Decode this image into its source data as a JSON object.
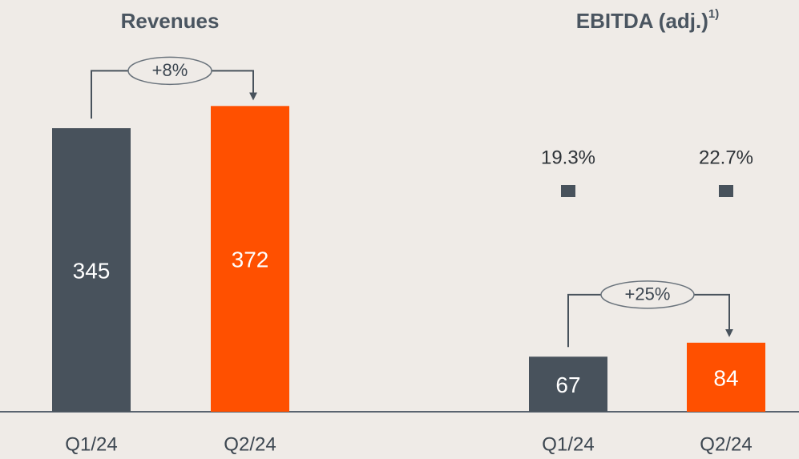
{
  "chart_data": [
    {
      "type": "bar",
      "title": "Revenues",
      "categories": [
        "Q1/24",
        "Q2/24"
      ],
      "values": [
        345,
        372
      ],
      "colors": [
        "#48525c",
        "#ff5000"
      ],
      "annotation": "+8%"
    },
    {
      "type": "bar",
      "title": "EBITDA (adj.)",
      "title_footnote": "1)",
      "categories": [
        "Q1/24",
        "Q2/24"
      ],
      "values": [
        67,
        84
      ],
      "colors": [
        "#48525c",
        "#ff5000"
      ],
      "annotation": "+25%",
      "margins": {
        "values": [
          19.3,
          22.7
        ],
        "value_labels": [
          "19.3%",
          "22.7%"
        ],
        "color": "#48525c"
      }
    }
  ]
}
